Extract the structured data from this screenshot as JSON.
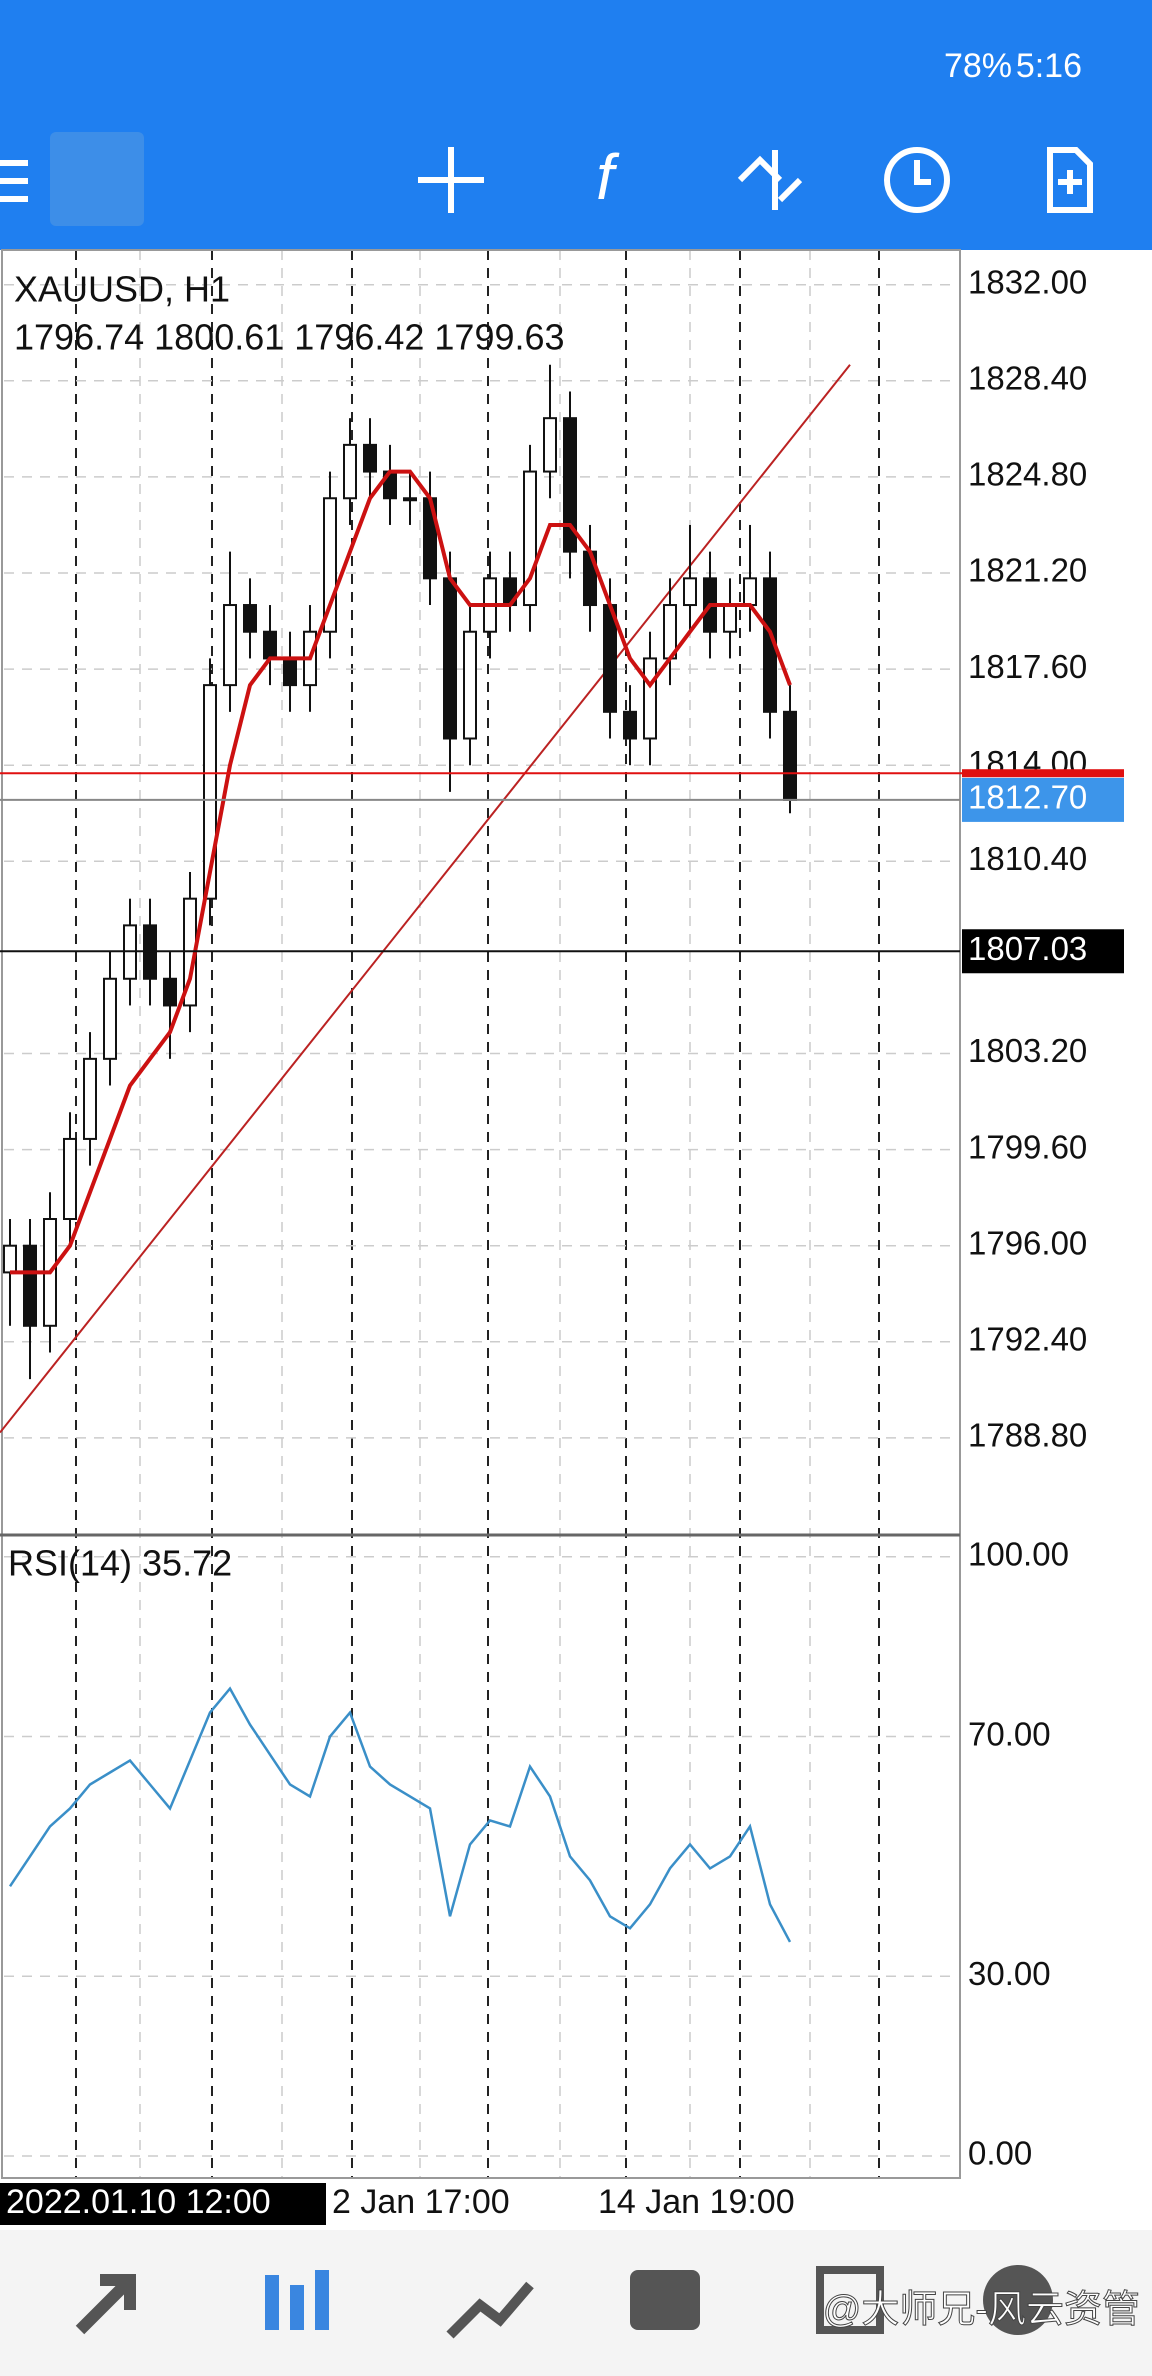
{
  "status_bar": {
    "battery": "78%",
    "time": "5:16"
  },
  "chart_data": {
    "type": "candlestick",
    "title": "XAUUSD, H1",
    "header_values": "1796.74 1800.61 1796.42 1799.63",
    "open": [
      1795,
      1796,
      1793,
      1797,
      1800,
      1803,
      1806,
      1808,
      1806,
      1805,
      1809,
      1817,
      1820,
      1819,
      1818,
      1817,
      1819,
      1824,
      1826,
      1825,
      1824,
      1824,
      1821,
      1815,
      1819,
      1821,
      1820,
      1825,
      1827,
      1822,
      1820,
      1816,
      1815,
      1818,
      1820,
      1821,
      1819,
      1820,
      1821,
      1816
    ],
    "high": [
      1797,
      1797,
      1798,
      1801,
      1804,
      1807,
      1809,
      1809,
      1807,
      1810,
      1818,
      1822,
      1821,
      1820,
      1819,
      1820,
      1825,
      1827,
      1827,
      1826,
      1825,
      1825,
      1822,
      1820,
      1822,
      1822,
      1826,
      1829,
      1828,
      1823,
      1821,
      1817,
      1819,
      1821,
      1823,
      1822,
      1821,
      1823,
      1822,
      1817
    ],
    "low": [
      1793,
      1791,
      1792,
      1796,
      1799,
      1802,
      1805,
      1805,
      1803,
      1804,
      1808,
      1816,
      1818,
      1817,
      1816,
      1816,
      1818,
      1823,
      1824,
      1823,
      1823,
      1820,
      1813,
      1814,
      1818,
      1819,
      1819,
      1824,
      1821,
      1819,
      1815,
      1814,
      1814,
      1817,
      1819,
      1818,
      1818,
      1819,
      1815,
      1812.2
    ],
    "close": [
      1796,
      1793,
      1797,
      1800,
      1803,
      1806,
      1808,
      1806,
      1805,
      1809,
      1817,
      1820,
      1819,
      1818,
      1817,
      1819,
      1824,
      1826,
      1825,
      1824,
      1824,
      1821,
      1815,
      1819,
      1821,
      1820,
      1825,
      1827,
      1822,
      1820,
      1816,
      1815,
      1818,
      1820,
      1821,
      1819,
      1820,
      1821,
      1816,
      1812.7
    ],
    "ma": {
      "color": "#cc1111",
      "values": [
        1795,
        1795,
        1795,
        1796,
        1798,
        1800,
        1802,
        1803,
        1804,
        1806,
        1810,
        1814,
        1817,
        1818,
        1818,
        1818,
        1820,
        1822,
        1824,
        1825,
        1825,
        1824,
        1821,
        1820,
        1820,
        1820,
        1821,
        1823,
        1823,
        1822,
        1820,
        1818,
        1817,
        1818,
        1819,
        1820,
        1820,
        1820,
        1819,
        1817
      ]
    },
    "trendline": [
      1789,
      1829
    ],
    "ask": 1813.7,
    "bid": {
      "value": 1812.7,
      "label": "1812.70"
    },
    "crosshair": {
      "value": 1807.03,
      "label": "1807.03"
    },
    "ylim": [
      1785.2,
      1833.3
    ],
    "yticks": [
      {
        "value": 1832,
        "label": "1832.00"
      },
      {
        "value": 1828.4,
        "label": "1828.40"
      },
      {
        "value": 1824.8,
        "label": "1824.80"
      },
      {
        "value": 1821.2,
        "label": "1821.20"
      },
      {
        "value": 1817.6,
        "label": "1817.60"
      },
      {
        "value": 1814,
        "label": "1814.00"
      },
      {
        "value": 1810.4,
        "label": "1810.40"
      },
      {
        "value": 1803.2,
        "label": "1803.20"
      },
      {
        "value": 1799.6,
        "label": "1799.60"
      },
      {
        "value": 1796,
        "label": "1796.00"
      },
      {
        "value": 1792.4,
        "label": "1792.40"
      },
      {
        "value": 1788.8,
        "label": "1788.80"
      }
    ],
    "time_labels": [
      "2022.01.10 12:00",
      "2 Jan 17:00",
      "14 Jan 19:00"
    ],
    "rsi": {
      "title": "RSI(14) 35.72",
      "color": "#3a8fc8",
      "values": [
        45,
        50,
        55,
        58,
        62,
        64,
        66,
        62,
        58,
        66,
        74,
        78,
        72,
        67,
        62,
        60,
        70,
        74,
        65,
        62,
        60,
        58,
        40,
        52,
        56,
        55,
        65,
        60,
        50,
        46,
        40,
        38,
        42,
        48,
        52,
        48,
        50,
        55,
        42,
        35.72
      ],
      "ylim": [
        -3.5,
        103.3
      ],
      "yticks": [
        {
          "value": 100,
          "label": "100.00"
        },
        {
          "value": 70,
          "label": "70.00"
        },
        {
          "value": 30,
          "label": "30.00"
        },
        {
          "value": 0,
          "label": "0.00"
        }
      ]
    }
  },
  "watermark": "@大师兄-风云资管"
}
